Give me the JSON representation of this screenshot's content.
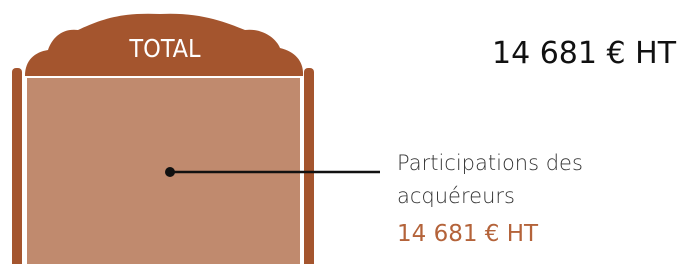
{
  "header": {
    "label": "TOTAL",
    "total": "14 681 € HT"
  },
  "segments": [
    {
      "label": "Participations des acquéreurs",
      "amount": "14 681 € HT"
    }
  ]
}
